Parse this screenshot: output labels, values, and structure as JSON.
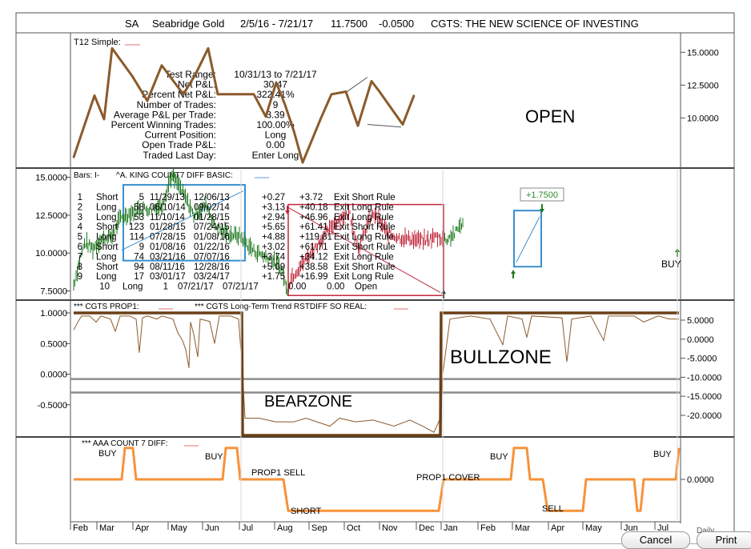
{
  "header": {
    "symbol": "SA",
    "name": "Seabridge Gold",
    "date_range": "2/5/16 - 7/21/17",
    "last_price": "11.7500",
    "change": "-0.0500",
    "brand": "CGTS: THE NEW SCIENCE OF INVESTING"
  },
  "colors": {
    "equity_line": "#8b5a2b",
    "up_bar": "#1f7a1f",
    "down_bar": "#c0283c",
    "blue_box": "#3a8fd0",
    "red_box": "#c0283c",
    "orange_line": "#f7923a",
    "gray_line": "#8c8c8c",
    "label_green": "#2e8b2e"
  },
  "icons": [
    "up-arrow-icon",
    "down-arrow-icon"
  ],
  "chart_data": [
    {
      "id": "equity",
      "type": "line",
      "title": "T12 Simple:",
      "y_ticks": [
        "15.0000",
        "12.5000",
        "10.0000"
      ],
      "ylim": [
        6.3,
        16.3
      ],
      "x": [
        0,
        26,
        38,
        48,
        73,
        92,
        110,
        137,
        152,
        168,
        180,
        198,
        225,
        240,
        253,
        264,
        275,
        286,
        309,
        322,
        340,
        355,
        372,
        382,
        411,
        425
      ],
      "values": [
        7.0,
        11.7,
        9.9,
        15.3,
        13.2,
        11.3,
        14.0,
        11.8,
        13.3,
        15.3,
        11.8,
        11.8,
        11.8,
        10.1,
        12.7,
        11.0,
        9.0,
        6.6,
        10.0,
        11.8,
        12.0,
        9.4,
        12.8,
        12.0,
        9.5,
        11.7
      ],
      "open_channel": {
        "upper": [
          [
            339,
            11.9
          ],
          [
            367,
            13.1
          ]
        ],
        "lower": [
          [
            367,
            9.5
          ],
          [
            409,
            9.3
          ]
        ]
      },
      "stats": [
        {
          "label": "Test Range:",
          "value": "10/31/13 to 7/21/17"
        },
        {
          "label": "Net P&L:",
          "value": "30.47"
        },
        {
          "label": "Percent Net P&L:",
          "value": "322.41%"
        },
        {
          "label": "Number of Trades:",
          "value": "9"
        },
        {
          "label": "Average P&L per Trade:",
          "value": "3.39"
        },
        {
          "label": "Percent Winning Trades:",
          "value": "100.00%"
        },
        {
          "label": "Current Position:",
          "value": "Long"
        },
        {
          "label": "Open Trade P&L:",
          "value": "0.00"
        },
        {
          "label": "Traded Last Day:",
          "value": "Enter Long"
        }
      ],
      "annotation": "OPEN"
    },
    {
      "id": "price",
      "type": "bar",
      "series_label_1": "Bars: I-",
      "series_label_2": "^A. KING COUNT7 DIFF BASIC:",
      "y_ticks": [
        "15.0000",
        "12.5000",
        "10.0000",
        "7.5000"
      ],
      "ylim": [
        7.0,
        15.5
      ],
      "path": [
        [
          0,
          7.9
        ],
        [
          8,
          9.6
        ],
        [
          14,
          10.7
        ],
        [
          24,
          10.3
        ],
        [
          34,
          10.9
        ],
        [
          48,
          11.1
        ],
        [
          58,
          12.3
        ],
        [
          70,
          12.6
        ],
        [
          80,
          12.9
        ],
        [
          95,
          12.9
        ],
        [
          110,
          13.1
        ],
        [
          122,
          15.1
        ],
        [
          132,
          14.4
        ],
        [
          140,
          13.6
        ],
        [
          150,
          12.5
        ],
        [
          166,
          13.2
        ],
        [
          176,
          11.8
        ],
        [
          190,
          11.3
        ],
        [
          208,
          11.1
        ],
        [
          218,
          10.5
        ],
        [
          226,
          10.1
        ],
        [
          235,
          9.9
        ],
        [
          246,
          9.6
        ],
        [
          258,
          9.1
        ],
        [
          262,
          8.6
        ],
        [
          266,
          7.5
        ],
        [
          272,
          8.4
        ],
        [
          290,
          9.6
        ],
        [
          308,
          10.8
        ],
        [
          320,
          11.6
        ],
        [
          330,
          12.2
        ],
        [
          345,
          12.6
        ],
        [
          352,
          11.0
        ],
        [
          357,
          10.3
        ],
        [
          368,
          12.1
        ],
        [
          376,
          12.6
        ],
        [
          392,
          11.3
        ],
        [
          408,
          11.0
        ],
        [
          425,
          10.9
        ],
        [
          440,
          10.8
        ],
        [
          452,
          11.1
        ],
        [
          466,
          10.9
        ],
        [
          478,
          11.4
        ],
        [
          482,
          11.8
        ],
        [
          486,
          12.0
        ]
      ],
      "trades": [
        {
          "no": "1",
          "side": "Short",
          "bars": "5",
          "entry": "11/29/13",
          "exit": "12/06/13",
          "pnl": "+0.27",
          "cum": "+3.72",
          "rule": "Exit Short Rule"
        },
        {
          "no": "2",
          "side": "Long",
          "bars": "58",
          "entry": "06/10/14",
          "exit": "09/02/14",
          "pnl": "+3.13",
          "cum": "+40.18",
          "rule": "Exit Long Rule"
        },
        {
          "no": "3",
          "side": "Long",
          "bars": "53",
          "entry": "11/10/14",
          "exit": "01/28/15",
          "pnl": "+2.94",
          "cum": "+46.96",
          "rule": "Exit Long Rule"
        },
        {
          "no": "4",
          "side": "Short",
          "bars": "123",
          "entry": "01/28/15",
          "exit": "07/24/15",
          "pnl": "+5.65",
          "cum": "+61.41",
          "rule": "Exit Short Rule"
        },
        {
          "no": "5",
          "side": "Long",
          "bars": "114",
          "entry": "07/28/15",
          "exit": "01/08/16",
          "pnl": "+4.88",
          "cum": "+119.81",
          "rule": "Exit Long Rule"
        },
        {
          "no": "6",
          "side": "Short",
          "bars": "9",
          "entry": "01/08/16",
          "exit": "01/22/16",
          "pnl": "+3.02",
          "cum": "+61.71",
          "rule": "Exit Short Rule"
        },
        {
          "no": "7",
          "side": "Long",
          "bars": "74",
          "entry": "03/21/16",
          "exit": "07/07/16",
          "pnl": "+3.74",
          "cum": "+34.12",
          "rule": "Exit Long Rule"
        },
        {
          "no": "8",
          "side": "Short",
          "bars": "94",
          "entry": "08/11/16",
          "exit": "12/28/16",
          "pnl": "+5.09",
          "cum": "+38.58",
          "rule": "Exit Short Rule"
        },
        {
          "no": "9",
          "side": "Long",
          "bars": "17",
          "entry": "03/01/17",
          "exit": "03/24/17",
          "pnl": "+1.75",
          "cum": "+16.99",
          "rule": "Exit Long Rule"
        },
        {
          "no": "10",
          "side": "Long",
          "bars": "1",
          "entry": "07/21/17",
          "exit": "07/21/17",
          "pnl": "0.00",
          "cum": "0.00",
          "rule": "Open"
        }
      ],
      "trade_label": "+1.7500",
      "buy_label": "BUY"
    },
    {
      "id": "prop1",
      "type": "line",
      "series_label_1": "*** CGTS PROP1:",
      "series_label_2": "*** CGTS Long-Term Trend RSTDIFF SO REAL:",
      "y_ticks_left": [
        "1.0000",
        "0.5000",
        "0.0000",
        "-0.5000"
      ],
      "y_ticks_right": [
        "5.0000",
        "0.0000",
        "-5.0000",
        "-10.0000",
        "-15.0000",
        "-20.0000"
      ],
      "ylim": [
        -1.0,
        1.0
      ],
      "zone_line": [
        [
          0,
          1.0
        ],
        [
          210,
          1.0
        ],
        [
          211,
          -1.0
        ],
        [
          458,
          -1.0
        ],
        [
          459,
          1.0
        ],
        [
          756,
          1.0
        ]
      ],
      "thin_line": [
        [
          0,
          0.72
        ],
        [
          6,
          0.87
        ],
        [
          10,
          0.95
        ],
        [
          20,
          0.95
        ],
        [
          28,
          0.85
        ],
        [
          34,
          0.95
        ],
        [
          46,
          0.9
        ],
        [
          52,
          0.7
        ],
        [
          58,
          0.95
        ],
        [
          70,
          0.95
        ],
        [
          78,
          0.9
        ],
        [
          82,
          0.35
        ],
        [
          86,
          0.92
        ],
        [
          92,
          0.95
        ],
        [
          104,
          0.9
        ],
        [
          110,
          0.95
        ],
        [
          124,
          0.9
        ],
        [
          130,
          0.68
        ],
        [
          136,
          0.55
        ],
        [
          140,
          0.4
        ],
        [
          144,
          0.1
        ],
        [
          146,
          0.85
        ],
        [
          150,
          0.65
        ],
        [
          155,
          0.28
        ],
        [
          158,
          0.9
        ],
        [
          170,
          0.86
        ],
        [
          176,
          0.5
        ],
        [
          182,
          0.95
        ],
        [
          196,
          0.95
        ],
        [
          206,
          0.9
        ],
        [
          211,
          0.0
        ],
        [
          214,
          -0.72
        ],
        [
          232,
          -0.72
        ],
        [
          252,
          -0.78
        ],
        [
          275,
          -0.78
        ],
        [
          290,
          -0.72
        ],
        [
          320,
          -0.85
        ],
        [
          332,
          -0.72
        ],
        [
          352,
          -0.78
        ],
        [
          374,
          -0.75
        ],
        [
          400,
          -0.85
        ],
        [
          420,
          -0.75
        ],
        [
          436,
          -0.85
        ],
        [
          450,
          -0.95
        ],
        [
          458,
          -0.72
        ],
        [
          461,
          0.0
        ],
        [
          470,
          0.9
        ],
        [
          496,
          0.95
        ],
        [
          520,
          0.9
        ],
        [
          536,
          0.48
        ],
        [
          542,
          0.95
        ],
        [
          560,
          0.9
        ],
        [
          566,
          0.6
        ],
        [
          572,
          0.95
        ],
        [
          610,
          0.92
        ],
        [
          616,
          0.2
        ],
        [
          622,
          0.9
        ],
        [
          646,
          0.95
        ],
        [
          662,
          0.55
        ],
        [
          668,
          0.95
        ],
        [
          700,
          0.95
        ],
        [
          712,
          0.85
        ],
        [
          730,
          0.95
        ],
        [
          744,
          0.9
        ],
        [
          756,
          0.9
        ]
      ],
      "hlines": [
        -0.08,
        -0.3
      ],
      "annotations": [
        "BULLZONE",
        "BEARZONE"
      ]
    },
    {
      "id": "aaa",
      "type": "line",
      "series_label_1": "*** AAA COUNT 7 DIFF:",
      "y_ticks_right": [
        "0.0000"
      ],
      "ylim": [
        -1.3,
        1.3
      ],
      "x_labels": [
        "Feb",
        "Mar",
        "Apr",
        "May",
        "Jun",
        "Jul",
        "Aug",
        "Sep",
        "Oct",
        "Nov",
        "Dec",
        "Jan",
        "Feb",
        "Mar",
        "Apr",
        "May",
        "Jun",
        "Jul"
      ],
      "values_line": [
        [
          0,
          0.0
        ],
        [
          60,
          0.0
        ],
        [
          64,
          1.0
        ],
        [
          74,
          1.0
        ],
        [
          78,
          0.0
        ],
        [
          186,
          0.0
        ],
        [
          190,
          1.0
        ],
        [
          204,
          1.0
        ],
        [
          208,
          0.0
        ],
        [
          262,
          0.0
        ],
        [
          268,
          -1.0
        ],
        [
          456,
          -1.0
        ],
        [
          462,
          0.0
        ],
        [
          546,
          0.0
        ],
        [
          550,
          1.0
        ],
        [
          566,
          1.0
        ],
        [
          570,
          0.0
        ],
        [
          586,
          0.0
        ],
        [
          592,
          -1.0
        ],
        [
          636,
          -1.0
        ],
        [
          640,
          0.0
        ],
        [
          700,
          0.0
        ],
        [
          704,
          -1.0
        ],
        [
          708,
          -1.0
        ],
        [
          712,
          0.0
        ],
        [
          752,
          0.0
        ],
        [
          756,
          1.0
        ]
      ],
      "annotations": [
        "BUY",
        "BUY",
        "PROP1 SELL",
        "SHORT",
        "PROP1 COVER",
        "BUY",
        "SELL",
        "BUY"
      ]
    }
  ],
  "footer": {
    "period": "Daily",
    "cancel": "Cancel",
    "print": "Print"
  }
}
